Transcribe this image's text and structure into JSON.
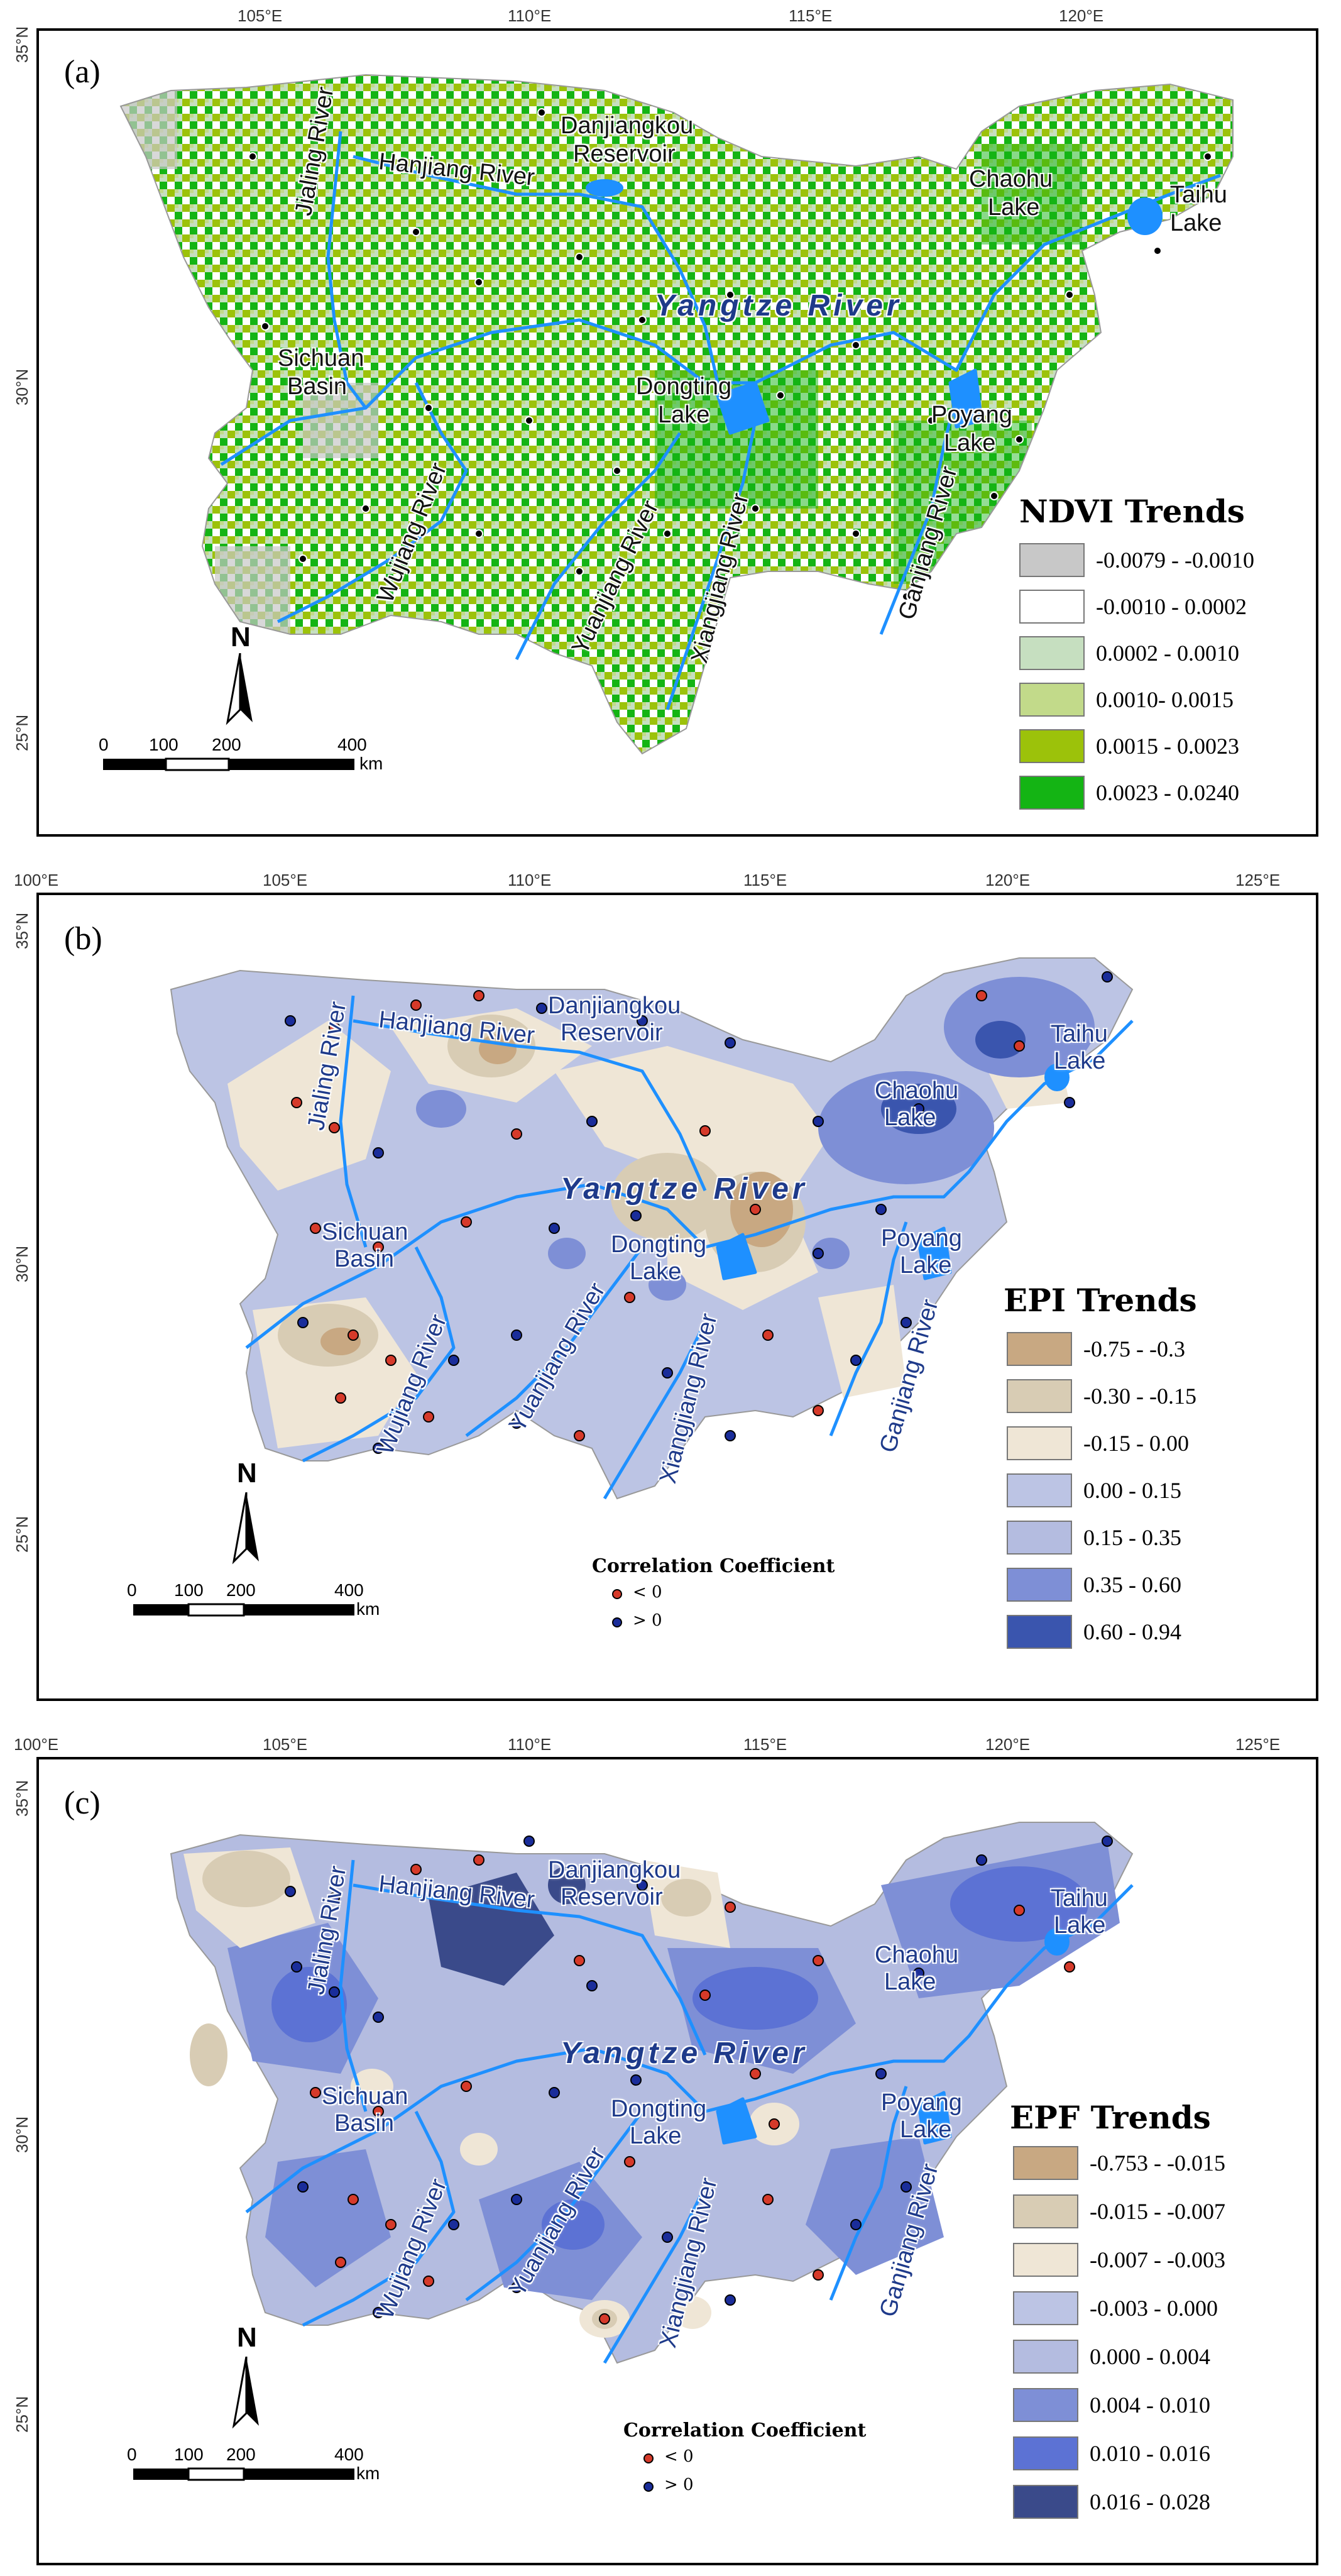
{
  "longitude_ticks_a": [
    "105°E",
    "110°E",
    "115°E",
    "120°E"
  ],
  "longitude_ticks": [
    "100°E",
    "105°E",
    "110°E",
    "115°E",
    "120°E",
    "125°E"
  ],
  "latitude_ticks": [
    "35°N",
    "30°N",
    "25°N"
  ],
  "map_labels": {
    "jialing": "Jialing River",
    "hanjiang": "Hanjiang River",
    "danjiangkou_1": "Danjiangkou",
    "danjiangkou_2": "Reservoir",
    "chaohu_1": "Chaohu",
    "chaohu_2": "Lake",
    "taihu_1": "Taihu",
    "taihu_2": "Lake",
    "yangtze": "Yangtze River",
    "sichuan_1": "Sichuan",
    "sichuan_2": "Basin",
    "dongting_1": "Dongting",
    "dongting_2": "Lake",
    "poyang_1": "Poyang",
    "poyang_2": "Lake",
    "wujiang": "Wujiang River",
    "yuanjiang": "Yuanjiang River",
    "xiangjiang": "Xiangjiang River",
    "ganjiang": "Ganjiang River"
  },
  "north_label": "N",
  "scale_bar": {
    "labels": [
      "0",
      "100",
      "200",
      "400"
    ],
    "unit": "km"
  },
  "panels": [
    {
      "label": "(a)",
      "legend_title": "NDVI Trends",
      "legend": [
        {
          "label": "-0.0079 - -0.0010",
          "color": "#c8c8c8"
        },
        {
          "label": "-0.0010 - 0.0002",
          "color": "#ffffff"
        },
        {
          "label": "0.0002 - 0.0010",
          "color": "#c6dfc0"
        },
        {
          "label": "0.0010- 0.0015",
          "color": "#c2da8a"
        },
        {
          "label": "0.0015 - 0.0023",
          "color": "#9cc20a"
        },
        {
          "label": "0.0023 - 0.0240",
          "color": "#14b414"
        }
      ]
    },
    {
      "label": "(b)",
      "legend_title": "EPI Trends",
      "legend": [
        {
          "label": "-0.75 - -0.3",
          "color": "#c8a882"
        },
        {
          "label": "-0.30 - -0.15",
          "color": "#d8ccb4"
        },
        {
          "label": "-0.15 - 0.00",
          "color": "#efe6d6"
        },
        {
          "label": "0.00 - 0.15",
          "color": "#bcc4e4"
        },
        {
          "label": "0.15 - 0.35",
          "color": "#b4bce0"
        },
        {
          "label": "0.35 - 0.60",
          "color": "#7e8fd6"
        },
        {
          "label": "0.60 - 0.94",
          "color": "#3a55ae"
        }
      ],
      "correlation": {
        "title": "Correlation Coefficient",
        "neg": "< 0",
        "pos": "> 0"
      }
    },
    {
      "label": "(c)",
      "legend_title": "EPF Trends",
      "legend": [
        {
          "label": "-0.753 - -0.015",
          "color": "#c8a882"
        },
        {
          "label": "-0.015 - -0.007",
          "color": "#d8ccb4"
        },
        {
          "label": "-0.007 - -0.003",
          "color": "#efe6d6"
        },
        {
          "label": "-0.003 - 0.000",
          "color": "#bcc4e4"
        },
        {
          "label": "0.000 - 0.004",
          "color": "#b4bce0"
        },
        {
          "label": "0.004 - 0.010",
          "color": "#7e8fd6"
        },
        {
          "label": "0.010 - 0.016",
          "color": "#5c72d4"
        },
        {
          "label": "0.016 - 0.028",
          "color": "#3a4a8a"
        }
      ],
      "correlation": {
        "title": "Correlation Coefficient",
        "neg": "< 0",
        "pos": "> 0"
      }
    }
  ],
  "colors": {
    "river": "#1e90ff",
    "station_neg": "#d63a2a",
    "station_pos": "#1a2d9a"
  }
}
